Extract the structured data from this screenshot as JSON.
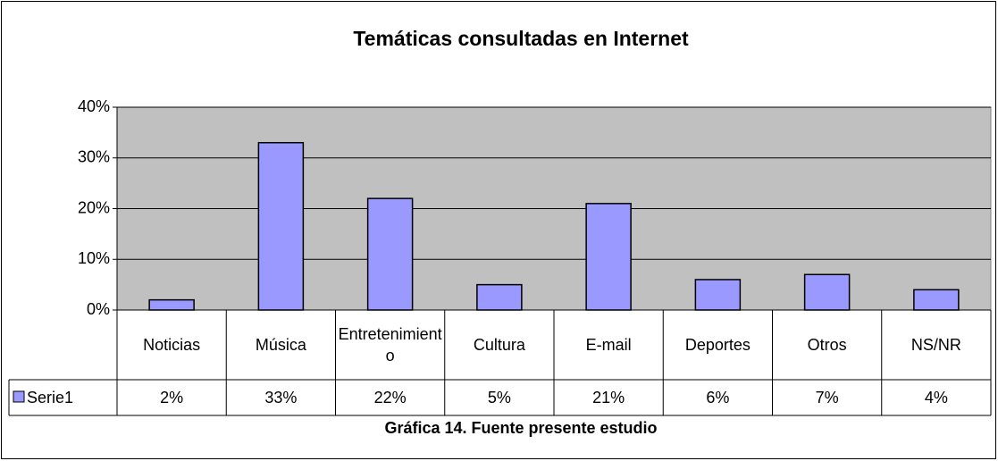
{
  "chart_data": {
    "type": "bar",
    "title": "Temáticas consultadas en Internet",
    "caption": "Gráfica 14. Fuente presente estudio",
    "categories": [
      "Noticias",
      "Música",
      "Entretenimiento",
      "Cultura",
      "E-mail",
      "Deportes",
      "Otros",
      "NS/NR"
    ],
    "series": [
      {
        "name": "Serie1",
        "color": "#9999ff",
        "values": [
          2,
          33,
          22,
          5,
          21,
          6,
          7,
          4
        ],
        "value_labels": [
          "2%",
          "33%",
          "22%",
          "5%",
          "21%",
          "6%",
          "7%",
          "4%"
        ]
      }
    ],
    "ylim": [
      0,
      40
    ],
    "yticks": [
      {
        "value": 0,
        "label": "0%"
      },
      {
        "value": 10,
        "label": "10%"
      },
      {
        "value": 20,
        "label": "20%"
      },
      {
        "value": 30,
        "label": "30%"
      },
      {
        "value": 40,
        "label": "40%"
      }
    ],
    "grid": true,
    "plot_background": "#c0c0c0"
  }
}
